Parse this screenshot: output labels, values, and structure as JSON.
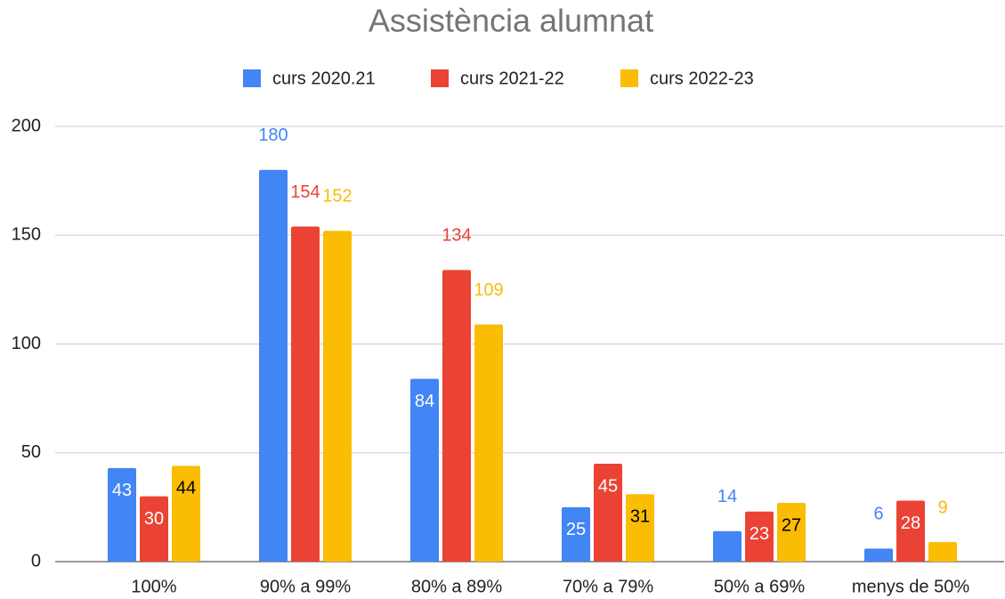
{
  "chart_data": {
    "type": "bar",
    "title": "Assistència alumnat",
    "categories": [
      "100%",
      "90% a 99%",
      "80% a 89%",
      "70% a 79%",
      "50% a 69%",
      "menys de 50%"
    ],
    "series": [
      {
        "name": "curs 2020.21",
        "color": "#4285f4",
        "values": [
          43,
          180,
          84,
          25,
          14,
          6
        ]
      },
      {
        "name": "curs 2021-22",
        "color": "#ea4335",
        "values": [
          30,
          154,
          134,
          45,
          23,
          28
        ]
      },
      {
        "name": "curs 2022-23",
        "color": "#fbbc04",
        "values": [
          44,
          152,
          109,
          31,
          27,
          9
        ]
      }
    ],
    "ylim": [
      0,
      200
    ],
    "yticks": [
      0,
      50,
      100,
      150,
      200
    ],
    "grid": true,
    "legend": "top"
  }
}
